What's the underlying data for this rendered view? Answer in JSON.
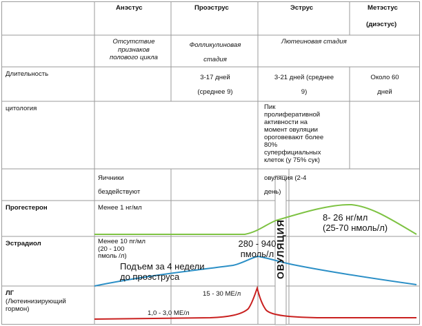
{
  "headers": {
    "anestrus": "Анэстус",
    "proestrus": "Проэструс",
    "estrus": "Эструс",
    "metestrus_1": "Метэстус",
    "metestrus_2": "(диэстус)"
  },
  "phases": {
    "anestrus_1": "Отсутствие",
    "anestrus_2": "признаков",
    "anestrus_3": "полового цикла",
    "follicular_1": "Фолликулиновая",
    "follicular_2": "стадия",
    "luteal": "Лютеиновая стадия"
  },
  "rows": {
    "duration": "Длительность",
    "cytology": "цитология",
    "progesterone": "Прогестерон",
    "estradiol": "Эстрадиол",
    "lh_1": "ЛГ",
    "lh_2": "(Лютеинизирующий",
    "lh_3": "гормон)"
  },
  "duration": {
    "proestrus_1": "3-17 дней",
    "proestrus_2": "(среднее 9)",
    "estrus_1": "3-21 дней (среднее",
    "estrus_2": "9)",
    "metestrus_1": "Около 60",
    "metestrus_2": "дней"
  },
  "cytology": {
    "estrus_1": "Пик",
    "estrus_2": "пролиферативной",
    "estrus_3": "активности  на",
    "estrus_4": "момент овуляции",
    "estrus_5": "ороговевают более",
    "estrus_6": "80%",
    "estrus_7": "суперфициальных",
    "estrus_8": "клеток (у 75% сук)"
  },
  "ovaries": {
    "text_1": "Яичники",
    "text_2": "бездействуют",
    "ovulation_1": "овуляция (2-4",
    "ovulation_2": "день)"
  },
  "progesterone": {
    "low": "Менее 1 нг/мл",
    "high_1": "8- 26 нг/мл",
    "high_2": "(25-70 нмоль/л)"
  },
  "estradiol": {
    "low_1": "Менее 10 пг/мл",
    "low_2": "(20 - 100",
    "low_3": "пмоль /л)",
    "peak_1": "280 - 940",
    "peak_2": "пмоль/л",
    "rise_1": "Подъем за 4 недели",
    "rise_2": "до проэструса"
  },
  "lh": {
    "peak": "15 - 30 МЕ/л",
    "base": "1,0 - 3,0 МЕ/л"
  },
  "ovulation_label": "ОВУЛЯЦИЯ",
  "colors": {
    "progesterone": "#7dc242",
    "estradiol": "#2b8fc6",
    "lh": "#c9201f",
    "grid": "#9a9a9a"
  }
}
